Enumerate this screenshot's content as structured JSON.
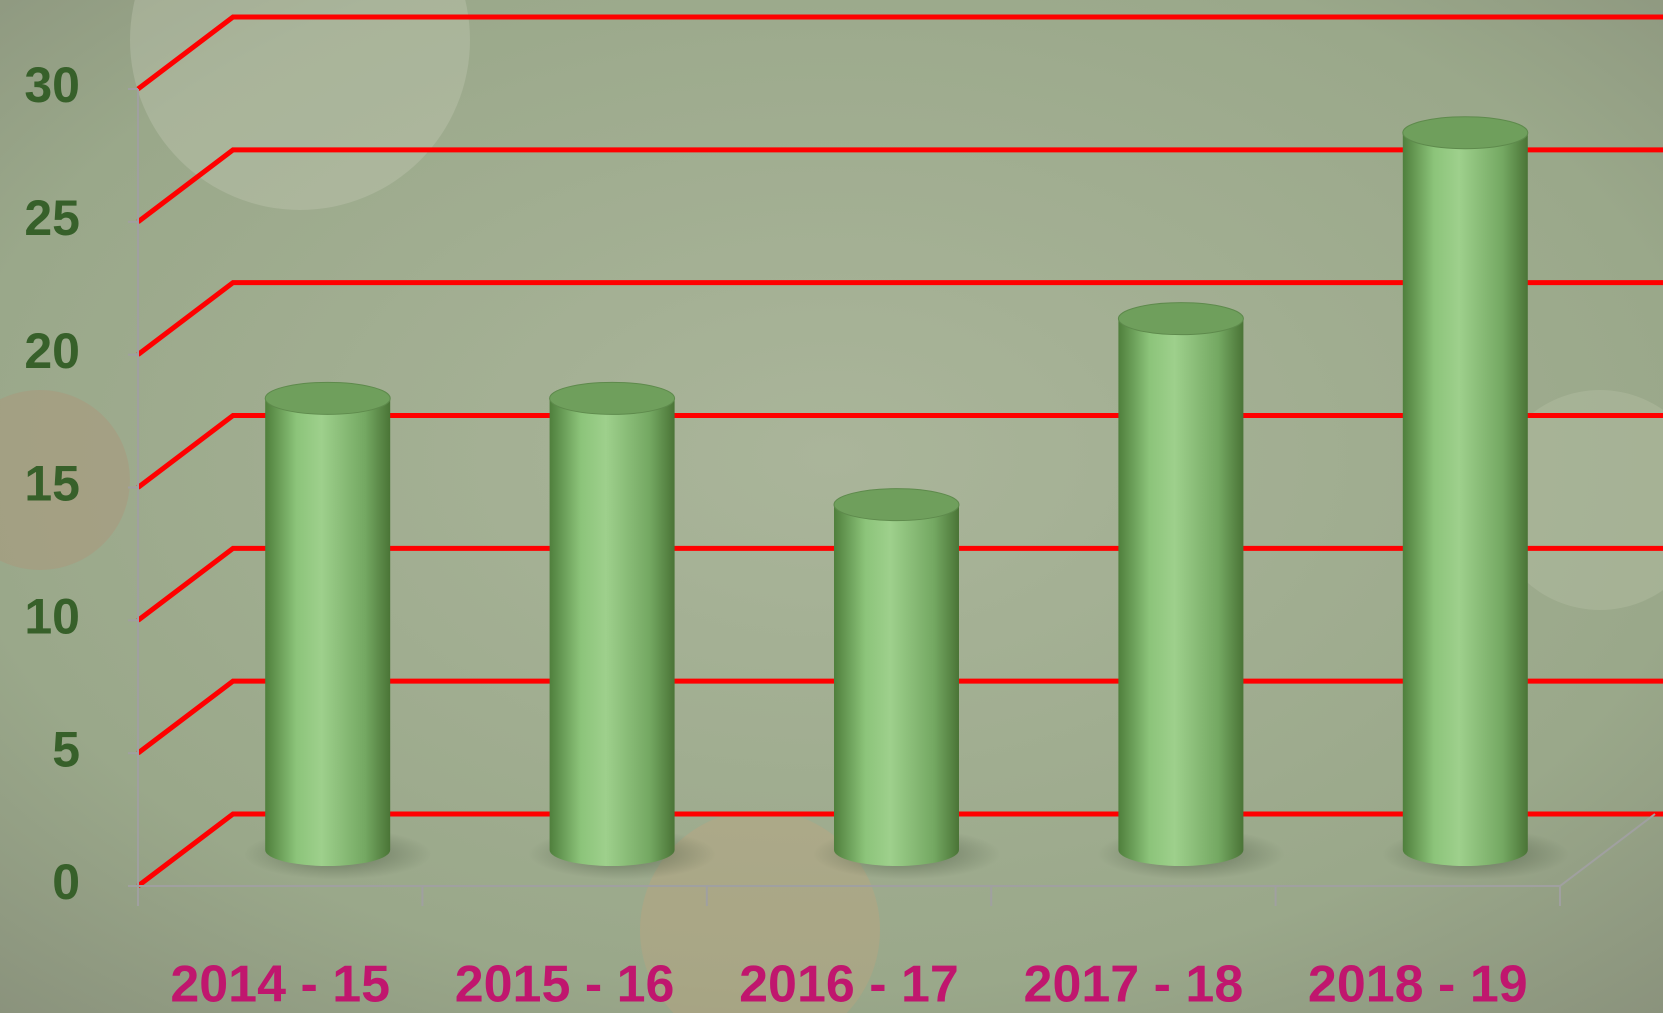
{
  "chart_data": {
    "type": "bar",
    "categories": [
      "2014 - 15",
      "2015 - 16",
      "2016 - 17",
      "2017 - 18",
      "2018 - 19"
    ],
    "values": [
      17,
      17,
      13,
      20,
      27
    ],
    "color": "#8cc47a",
    "ylim": [
      0,
      30
    ],
    "yticks": [
      0,
      5,
      10,
      15,
      20,
      25,
      30
    ],
    "grid": true,
    "grid_color": "#ff0000"
  }
}
